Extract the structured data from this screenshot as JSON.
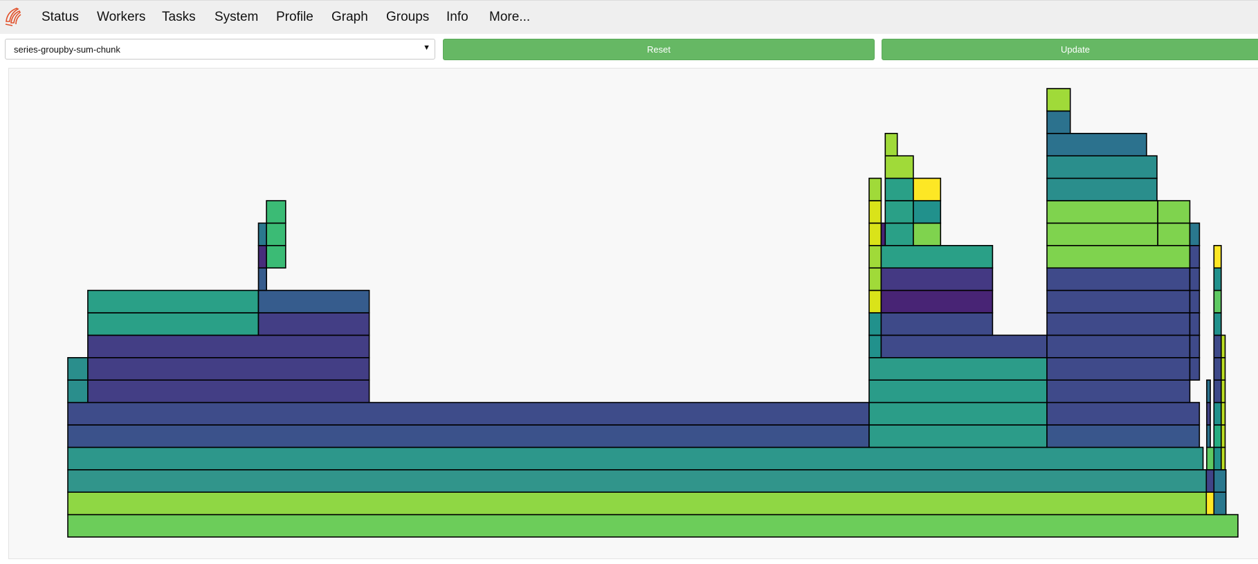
{
  "nav": {
    "logo_icon": "dask-distributed-logo-icon",
    "items": [
      "Status",
      "Workers",
      "Tasks",
      "System",
      "Profile",
      "Graph",
      "Groups",
      "Info",
      "More..."
    ]
  },
  "controls": {
    "task_key_select": {
      "value": "series-groupby-sum-chunk",
      "arrow_icon": "caret-down-icon"
    },
    "reset_label": "Reset",
    "update_label": "Update"
  },
  "colors": {
    "button_green": "#66b864",
    "viridis": [
      "#440154",
      "#46327e",
      "#3b518b",
      "#2c718e",
      "#21918c",
      "#28ae80",
      "#5ec962",
      "#addc30",
      "#fde725"
    ]
  },
  "chart_data": {
    "type": "flamegraph",
    "title": "",
    "xlabel": "",
    "ylabel": "",
    "note": "Profile flame graph of stack frames; x is fraction of samples (0-1), depth 0 is the bottom row.",
    "frames": [
      {
        "depth": 0,
        "start": 0.0,
        "end": 1.0,
        "color": "#6ccd5a"
      },
      {
        "depth": 1,
        "start": 0.0,
        "end": 0.973,
        "color": "#8fd744"
      },
      {
        "depth": 1,
        "start": 0.973,
        "end": 0.9795,
        "color": "#fde725"
      },
      {
        "depth": 1,
        "start": 0.9795,
        "end": 0.9898,
        "color": "#2a788e"
      },
      {
        "depth": 2,
        "start": 0.0,
        "end": 0.973,
        "color": "#31958b"
      },
      {
        "depth": 2,
        "start": 0.973,
        "end": 0.9795,
        "color": "#414487"
      },
      {
        "depth": 2,
        "start": 0.9795,
        "end": 0.9898,
        "color": "#2a788e"
      },
      {
        "depth": 3,
        "start": 0.0,
        "end": 0.9702,
        "color": "#2d978b"
      },
      {
        "depth": 3,
        "start": 0.9733,
        "end": 0.9795,
        "color": "#5ec962"
      },
      {
        "depth": 3,
        "start": 0.9795,
        "end": 0.9857,
        "color": "#21918c"
      },
      {
        "depth": 3,
        "start": 0.9857,
        "end": 0.9891,
        "color": "#bddf26"
      },
      {
        "depth": 4,
        "start": 0.0,
        "end": 0.6848,
        "color": "#3b528b"
      },
      {
        "depth": 4,
        "start": 0.6848,
        "end": 0.8368,
        "color": "#2c9c89"
      },
      {
        "depth": 4,
        "start": 0.8368,
        "end": 0.9671,
        "color": "#39568c"
      },
      {
        "depth": 4,
        "start": 0.9733,
        "end": 0.9764,
        "color": "#2c728e"
      },
      {
        "depth": 4,
        "start": 0.9795,
        "end": 0.9857,
        "color": "#27ad81"
      },
      {
        "depth": 4,
        "start": 0.9857,
        "end": 0.9891,
        "color": "#bddf26"
      },
      {
        "depth": 5,
        "start": 0.0,
        "end": 0.6848,
        "color": "#3e4c8a"
      },
      {
        "depth": 5,
        "start": 0.6848,
        "end": 0.8368,
        "color": "#2b9d88"
      },
      {
        "depth": 5,
        "start": 0.8368,
        "end": 0.9671,
        "color": "#3f4a8a"
      },
      {
        "depth": 5,
        "start": 0.9733,
        "end": 0.9764,
        "color": "#414487"
      },
      {
        "depth": 5,
        "start": 0.9795,
        "end": 0.9857,
        "color": "#21918c"
      },
      {
        "depth": 5,
        "start": 0.9857,
        "end": 0.9891,
        "color": "#bddf26"
      },
      {
        "depth": 6,
        "start": 0.0,
        "end": 0.0171,
        "color": "#2a8e8c"
      },
      {
        "depth": 6,
        "start": 0.0171,
        "end": 0.2576,
        "color": "#433e85"
      },
      {
        "depth": 6,
        "start": 0.6848,
        "end": 0.8368,
        "color": "#2a9c89"
      },
      {
        "depth": 6,
        "start": 0.8368,
        "end": 0.9589,
        "color": "#3f4a8a"
      },
      {
        "depth": 6,
        "start": 0.9733,
        "end": 0.9764,
        "color": "#2c728e"
      },
      {
        "depth": 6,
        "start": 0.9795,
        "end": 0.9857,
        "color": "#3e4a89"
      },
      {
        "depth": 6,
        "start": 0.9857,
        "end": 0.9891,
        "color": "#bddf26"
      },
      {
        "depth": 7,
        "start": 0.0,
        "end": 0.0171,
        "color": "#2a8e8c"
      },
      {
        "depth": 7,
        "start": 0.0171,
        "end": 0.2576,
        "color": "#433e85"
      },
      {
        "depth": 7,
        "start": 0.6848,
        "end": 0.8368,
        "color": "#2c9c89"
      },
      {
        "depth": 7,
        "start": 0.8368,
        "end": 0.9589,
        "color": "#3f4a8a"
      },
      {
        "depth": 7,
        "start": 0.9589,
        "end": 0.9671,
        "color": "#3f4a8a"
      },
      {
        "depth": 7,
        "start": 0.9795,
        "end": 0.9857,
        "color": "#3e4a89"
      },
      {
        "depth": 7,
        "start": 0.9857,
        "end": 0.9891,
        "color": "#bddf26"
      },
      {
        "depth": 8,
        "start": 0.0171,
        "end": 0.2576,
        "color": "#433e85"
      },
      {
        "depth": 8,
        "start": 0.6848,
        "end": 0.6951,
        "color": "#21918c"
      },
      {
        "depth": 8,
        "start": 0.6951,
        "end": 0.8368,
        "color": "#3f4a8a"
      },
      {
        "depth": 8,
        "start": 0.8368,
        "end": 0.9589,
        "color": "#3f4a8a"
      },
      {
        "depth": 8,
        "start": 0.9589,
        "end": 0.9671,
        "color": "#3f4a8a"
      },
      {
        "depth": 8,
        "start": 0.9795,
        "end": 0.9857,
        "color": "#3e4a89"
      },
      {
        "depth": 8,
        "start": 0.9857,
        "end": 0.9891,
        "color": "#bddf26"
      },
      {
        "depth": 9,
        "start": 0.0171,
        "end": 0.1629,
        "color": "#2aa087"
      },
      {
        "depth": 9,
        "start": 0.1629,
        "end": 0.2576,
        "color": "#433e85"
      },
      {
        "depth": 9,
        "start": 0.6848,
        "end": 0.6951,
        "color": "#21918c"
      },
      {
        "depth": 9,
        "start": 0.6951,
        "end": 0.7903,
        "color": "#3e4a89"
      },
      {
        "depth": 9,
        "start": 0.8368,
        "end": 0.9589,
        "color": "#3f4a8a"
      },
      {
        "depth": 9,
        "start": 0.9589,
        "end": 0.9671,
        "color": "#3f4a8a"
      },
      {
        "depth": 9,
        "start": 0.9795,
        "end": 0.9857,
        "color": "#21918c"
      },
      {
        "depth": 10,
        "start": 0.0171,
        "end": 0.1629,
        "color": "#2aa087"
      },
      {
        "depth": 10,
        "start": 0.1629,
        "end": 0.2576,
        "color": "#365c8d"
      },
      {
        "depth": 10,
        "start": 0.6848,
        "end": 0.6951,
        "color": "#dae319"
      },
      {
        "depth": 10,
        "start": 0.6951,
        "end": 0.7903,
        "color": "#482475"
      },
      {
        "depth": 10,
        "start": 0.8368,
        "end": 0.9589,
        "color": "#3f4a8a"
      },
      {
        "depth": 10,
        "start": 0.9589,
        "end": 0.9671,
        "color": "#3f4a8a"
      },
      {
        "depth": 10,
        "start": 0.9795,
        "end": 0.9857,
        "color": "#5ec962"
      },
      {
        "depth": 11,
        "start": 0.1629,
        "end": 0.1698,
        "color": "#365c8d"
      },
      {
        "depth": 11,
        "start": 0.6848,
        "end": 0.6951,
        "color": "#a0da39"
      },
      {
        "depth": 11,
        "start": 0.6951,
        "end": 0.7903,
        "color": "#443983"
      },
      {
        "depth": 11,
        "start": 0.8368,
        "end": 0.9589,
        "color": "#3f4a8a"
      },
      {
        "depth": 11,
        "start": 0.9589,
        "end": 0.9671,
        "color": "#3f4a8a"
      },
      {
        "depth": 11,
        "start": 0.9795,
        "end": 0.9857,
        "color": "#21918c"
      },
      {
        "depth": 12,
        "start": 0.1629,
        "end": 0.1698,
        "color": "#472d7b"
      },
      {
        "depth": 12,
        "start": 0.1698,
        "end": 0.1862,
        "color": "#3bbb75"
      },
      {
        "depth": 12,
        "start": 0.6848,
        "end": 0.6951,
        "color": "#a0da39"
      },
      {
        "depth": 12,
        "start": 0.6951,
        "end": 0.7903,
        "color": "#2aa087"
      },
      {
        "depth": 12,
        "start": 0.8368,
        "end": 0.9589,
        "color": "#7fd34e"
      },
      {
        "depth": 12,
        "start": 0.9589,
        "end": 0.9671,
        "color": "#3f4a8a"
      },
      {
        "depth": 12,
        "start": 0.9795,
        "end": 0.9857,
        "color": "#fde725"
      },
      {
        "depth": 13,
        "start": 0.1629,
        "end": 0.1698,
        "color": "#2a788e"
      },
      {
        "depth": 13,
        "start": 0.1698,
        "end": 0.1862,
        "color": "#3bbb75"
      },
      {
        "depth": 13,
        "start": 0.6848,
        "end": 0.6951,
        "color": "#dae319"
      },
      {
        "depth": 13,
        "start": 0.6951,
        "end": 0.6986,
        "color": "#482475"
      },
      {
        "depth": 13,
        "start": 0.6986,
        "end": 0.7226,
        "color": "#2aa087"
      },
      {
        "depth": 13,
        "start": 0.7226,
        "end": 0.7459,
        "color": "#7fd34e"
      },
      {
        "depth": 13,
        "start": 0.8368,
        "end": 0.9315,
        "color": "#7fd34e"
      },
      {
        "depth": 13,
        "start": 0.9315,
        "end": 0.9589,
        "color": "#7fd34e"
      },
      {
        "depth": 13,
        "start": 0.9589,
        "end": 0.9671,
        "color": "#2a788e"
      },
      {
        "depth": 14,
        "start": 0.1698,
        "end": 0.1862,
        "color": "#3bbb75"
      },
      {
        "depth": 14,
        "start": 0.6848,
        "end": 0.6951,
        "color": "#dae319"
      },
      {
        "depth": 14,
        "start": 0.6986,
        "end": 0.7226,
        "color": "#2aa087"
      },
      {
        "depth": 14,
        "start": 0.7226,
        "end": 0.7459,
        "color": "#21918c"
      },
      {
        "depth": 14,
        "start": 0.8368,
        "end": 0.9315,
        "color": "#7fd34e"
      },
      {
        "depth": 14,
        "start": 0.9315,
        "end": 0.9589,
        "color": "#7fd34e"
      },
      {
        "depth": 15,
        "start": 0.6848,
        "end": 0.6951,
        "color": "#a0da39"
      },
      {
        "depth": 15,
        "start": 0.6986,
        "end": 0.7226,
        "color": "#2aa087"
      },
      {
        "depth": 15,
        "start": 0.7226,
        "end": 0.7459,
        "color": "#fde725"
      },
      {
        "depth": 15,
        "start": 0.8368,
        "end": 0.9308,
        "color": "#2a8e8c"
      },
      {
        "depth": 16,
        "start": 0.6986,
        "end": 0.7226,
        "color": "#a0da39"
      },
      {
        "depth": 16,
        "start": 0.8368,
        "end": 0.9308,
        "color": "#2a8e8c"
      },
      {
        "depth": 17,
        "start": 0.6986,
        "end": 0.7089,
        "color": "#a0da39"
      },
      {
        "depth": 17,
        "start": 0.8368,
        "end": 0.9219,
        "color": "#2c728e"
      },
      {
        "depth": 18,
        "start": 0.8368,
        "end": 0.8567,
        "color": "#2c728e"
      },
      {
        "depth": 19,
        "start": 0.8368,
        "end": 0.8567,
        "color": "#a0da39"
      }
    ]
  }
}
